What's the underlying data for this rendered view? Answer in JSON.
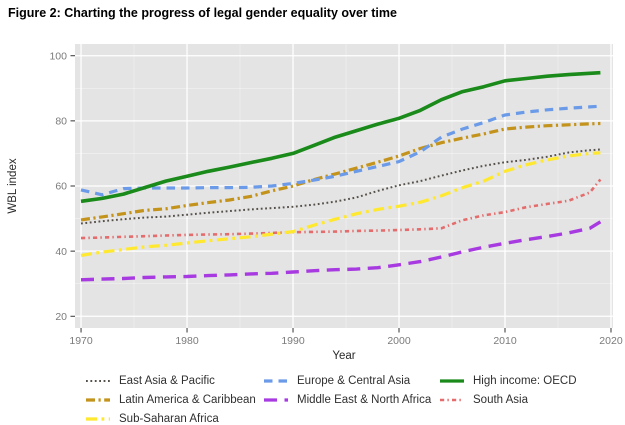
{
  "figure": {
    "title": "Figure 2: Charting the progress of legal gender equality over time"
  },
  "colors": {
    "panel_bg": "#e4e4e4",
    "grid_major": "#ffffff",
    "grid_minor": "#f2f2f2",
    "tick_mark": "#333333",
    "axis_tick_text": "#7b7b7b",
    "axis_title_text": "#2a2a2a",
    "legend_text": "#303030",
    "title_text": "#000000"
  },
  "chart_data": {
    "type": "line",
    "title": "Figure 2: Charting the progress of legal gender equality over time",
    "xlabel": "Year",
    "ylabel": "WBL index",
    "x_ticks": [
      1970,
      1980,
      1990,
      2000,
      2010,
      2020
    ],
    "x_minor_ticks": [
      1975,
      1985,
      1995,
      2005,
      2015
    ],
    "y_ticks": [
      20,
      40,
      60,
      80,
      100
    ],
    "y_minor_ticks": [
      30,
      50,
      70,
      90
    ],
    "x_range": [
      1969.43,
      2020.19
    ],
    "y_range": [
      16.4,
      103.6
    ],
    "grid": true,
    "legend_position": "bottom",
    "x": [
      1970,
      1972,
      1974,
      1976,
      1978,
      1980,
      1982,
      1984,
      1986,
      1988,
      1990,
      1992,
      1994,
      1996,
      1998,
      2000,
      2002,
      2004,
      2006,
      2008,
      2010,
      2012,
      2014,
      2016,
      2018,
      2019
    ],
    "draw_order": [
      4,
      5,
      6,
      0,
      3,
      1,
      2
    ],
    "series": [
      {
        "name": "East Asia & Pacific",
        "color": "#56504a",
        "dash": "1.8 2.6",
        "width": 2.0,
        "values": [
          48.5,
          49.2,
          49.8,
          50.3,
          50.6,
          51.2,
          51.8,
          52.3,
          52.8,
          53.2,
          53.6,
          54.3,
          55.2,
          56.5,
          58.5,
          60.2,
          61.5,
          63.2,
          64.8,
          66.2,
          67.3,
          68.0,
          69.0,
          70.3,
          71.0,
          71.2
        ]
      },
      {
        "name": "Europe & Central Asia",
        "color": "#6b9be8",
        "dash": "8.5 6",
        "width": 3.2,
        "values": [
          58.8,
          57.3,
          59.2,
          59.4,
          59.4,
          59.4,
          59.5,
          59.5,
          59.6,
          60.0,
          60.8,
          61.8,
          63.0,
          64.5,
          66.0,
          67.5,
          70.5,
          75.0,
          77.5,
          79.5,
          81.8,
          82.7,
          83.4,
          83.9,
          84.3,
          84.5
        ]
      },
      {
        "name": "High income: OECD",
        "color": "#1a8a1a",
        "dash": "",
        "width": 3.6,
        "values": [
          55.3,
          56.2,
          57.5,
          59.5,
          61.5,
          63.0,
          64.5,
          65.8,
          67.2,
          68.5,
          70.0,
          72.5,
          75.0,
          77.0,
          79.0,
          80.8,
          83.2,
          86.5,
          89.0,
          90.5,
          92.3,
          93.0,
          93.7,
          94.2,
          94.6,
          94.8
        ]
      },
      {
        "name": "Latin America & Caribbean",
        "color": "#c3931b",
        "dash": "9 3.5 2.2 3.5",
        "width": 3.2,
        "values": [
          49.6,
          50.5,
          51.5,
          52.5,
          53.0,
          54.0,
          54.9,
          55.7,
          56.8,
          58.5,
          60.0,
          62.0,
          63.7,
          65.5,
          67.3,
          69.2,
          71.5,
          73.3,
          74.7,
          76.0,
          77.5,
          78.1,
          78.5,
          78.8,
          79.1,
          79.2
        ]
      },
      {
        "name": "Middle East & North Africa",
        "color": "#a73ae0",
        "dash": "13 7.5",
        "width": 3.4,
        "values": [
          31.2,
          31.4,
          31.6,
          31.9,
          32.1,
          32.2,
          32.5,
          32.7,
          33.0,
          33.2,
          33.6,
          34.0,
          34.3,
          34.5,
          34.9,
          35.8,
          36.8,
          38.2,
          39.8,
          41.2,
          42.4,
          43.5,
          44.5,
          45.6,
          47.0,
          49.0
        ]
      },
      {
        "name": "South Asia",
        "color": "#e46c6c",
        "dash": "4.2 3.2 1.4 3.2",
        "width": 2.6,
        "values": [
          44.0,
          44.2,
          44.4,
          44.6,
          44.8,
          45.0,
          45.1,
          45.2,
          45.4,
          45.6,
          45.8,
          45.9,
          46.0,
          46.2,
          46.3,
          46.5,
          46.7,
          47.0,
          49.5,
          51.0,
          52.0,
          53.5,
          54.5,
          55.5,
          58.0,
          62.0
        ]
      },
      {
        "name": "Sub-Saharan Africa",
        "color": "#ffe830",
        "dash": "11 4.5 2.8 4.5",
        "width": 3.2,
        "values": [
          38.7,
          39.7,
          40.5,
          41.3,
          41.8,
          42.5,
          43.2,
          43.8,
          44.4,
          45.2,
          46.0,
          48.0,
          49.8,
          51.5,
          52.8,
          53.8,
          55.0,
          57.0,
          59.5,
          61.5,
          64.5,
          66.5,
          68.0,
          69.2,
          70.0,
          70.2
        ]
      }
    ]
  }
}
